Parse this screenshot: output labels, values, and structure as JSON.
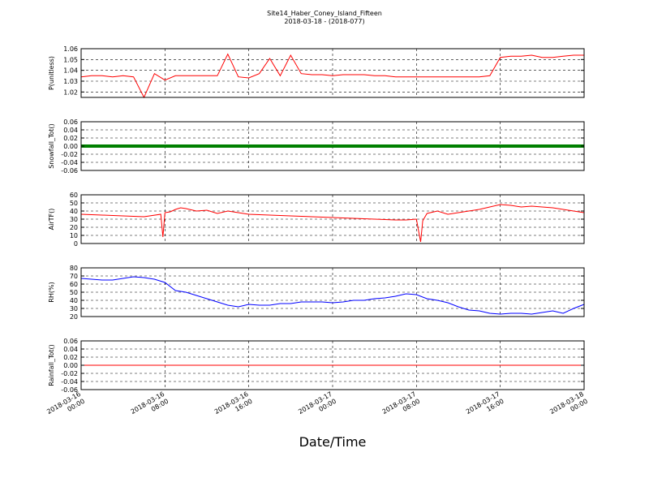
{
  "title": "Site14_Haber_Coney_Island_Fifteen",
  "subtitle": "2018-03-18 - (2018-077)",
  "xlabel": "Date/Time",
  "x_ticks": [
    {
      "line1": "2018-03-16",
      "line2": "00:00"
    },
    {
      "line1": "2018-03-16",
      "line2": "08:00"
    },
    {
      "line1": "2018-03-16",
      "line2": "16:00"
    },
    {
      "line1": "2018-03-17",
      "line2": "00:00"
    },
    {
      "line1": "2018-03-17",
      "line2": "08:00"
    },
    {
      "line1": "2018-03-17",
      "line2": "16:00"
    },
    {
      "line1": "2018-03-18",
      "line2": "00:00"
    }
  ],
  "chart_data": [
    {
      "type": "line",
      "ylabel": "P(unitless)",
      "color": "#ff0000",
      "ylim": [
        1.015,
        1.06
      ],
      "yticks": [
        "1.02",
        "1.03",
        "1.04",
        "1.05",
        "1.06"
      ],
      "ytick_values": [
        1.02,
        1.03,
        1.04,
        1.05,
        1.06
      ],
      "x": [
        0,
        1,
        2,
        3,
        4,
        5,
        6,
        7,
        8,
        9,
        10,
        11,
        12,
        13,
        14,
        15,
        16,
        17,
        18,
        19,
        20,
        21,
        22,
        23,
        24,
        25,
        26,
        27,
        28,
        29,
        30,
        31,
        32,
        33,
        34,
        35,
        36,
        37,
        38,
        39,
        40,
        41,
        42,
        43,
        44,
        45,
        46,
        47,
        48
      ],
      "values": [
        1.034,
        1.035,
        1.035,
        1.034,
        1.035,
        1.034,
        1.015,
        1.037,
        1.031,
        1.035,
        1.035,
        1.035,
        1.035,
        1.035,
        1.055,
        1.034,
        1.033,
        1.037,
        1.051,
        1.035,
        1.054,
        1.037,
        1.036,
        1.036,
        1.035,
        1.036,
        1.036,
        1.036,
        1.035,
        1.035,
        1.034,
        1.034,
        1.034,
        1.034,
        1.034,
        1.034,
        1.034,
        1.034,
        1.034,
        1.035,
        1.052,
        1.053,
        1.053,
        1.054,
        1.052,
        1.052,
        1.053,
        1.054,
        1.054
      ]
    },
    {
      "type": "line",
      "ylabel": "Snowfall_Tot()",
      "color": "#008000",
      "ylim": [
        -0.06,
        0.06
      ],
      "yticks": [
        "0.06",
        "0.04",
        "0.02",
        "0.00",
        "-0.02",
        "-0.04",
        "-0.06"
      ],
      "ytick_values": [
        0.06,
        0.04,
        0.02,
        0.0,
        -0.02,
        -0.04,
        -0.06
      ],
      "x": [
        0,
        48
      ],
      "values": [
        0.0,
        0.0
      ]
    },
    {
      "type": "line",
      "ylabel": "AirTF()",
      "color": "#ff0000",
      "ylim": [
        0,
        60
      ],
      "yticks": [
        "60",
        "50",
        "40",
        "30",
        "20",
        "10",
        "0"
      ],
      "ytick_values": [
        60,
        50,
        40,
        30,
        20,
        10,
        0
      ],
      "x": [
        0,
        2,
        4,
        6,
        7.6,
        7.8,
        8,
        8.5,
        9,
        9.5,
        10,
        11,
        12,
        13,
        14,
        15,
        16,
        18,
        20,
        22,
        24,
        26,
        28,
        30,
        31,
        32,
        32.4,
        32.6,
        33,
        34,
        35,
        36,
        37,
        38,
        39,
        40,
        41,
        42,
        43,
        44,
        45,
        46,
        47,
        48
      ],
      "values": [
        36,
        35,
        34,
        33,
        36,
        8,
        38,
        39,
        42,
        44,
        43,
        40,
        41,
        37,
        40,
        38,
        36,
        35,
        34,
        33,
        32,
        31,
        30,
        29,
        29,
        30,
        2,
        28,
        37,
        40,
        36,
        38,
        40,
        42,
        45,
        48,
        47,
        45,
        46,
        45,
        44,
        42,
        40,
        38
      ]
    },
    {
      "type": "line",
      "ylabel": "RH(%)",
      "color": "#0000ff",
      "ylim": [
        20,
        80
      ],
      "yticks": [
        "80",
        "70",
        "60",
        "50",
        "40",
        "30",
        "20"
      ],
      "ytick_values": [
        80,
        70,
        60,
        50,
        40,
        30,
        20
      ],
      "x": [
        0,
        1,
        2,
        3,
        4,
        5,
        6,
        7,
        8,
        9,
        10,
        11,
        12,
        13,
        14,
        15,
        16,
        17,
        18,
        19,
        20,
        21,
        22,
        23,
        24,
        25,
        26,
        27,
        28,
        29,
        30,
        31,
        32,
        33,
        34,
        35,
        36,
        37,
        38,
        39,
        40,
        41,
        42,
        43,
        44,
        45,
        46,
        47,
        48
      ],
      "values": [
        67,
        66,
        65,
        65,
        67,
        69,
        68,
        66,
        62,
        52,
        50,
        46,
        42,
        38,
        34,
        32,
        35,
        34,
        34,
        36,
        36,
        38,
        38,
        38,
        37,
        38,
        40,
        40,
        42,
        43,
        45,
        48,
        47,
        42,
        40,
        37,
        32,
        28,
        27,
        24,
        23,
        24,
        24,
        23,
        25,
        27,
        24,
        30,
        35
      ]
    },
    {
      "type": "line",
      "ylabel": "Rainfall_Tot()",
      "color": "#ff0000",
      "ylim": [
        -0.06,
        0.06
      ],
      "yticks": [
        "0.06",
        "0.04",
        "0.02",
        "0.00",
        "-0.02",
        "-0.04",
        "-0.06"
      ],
      "ytick_values": [
        0.06,
        0.04,
        0.02,
        0.0,
        -0.02,
        -0.04,
        -0.06
      ],
      "x": [
        0,
        48
      ],
      "values": [
        0.0,
        0.0
      ]
    }
  ]
}
